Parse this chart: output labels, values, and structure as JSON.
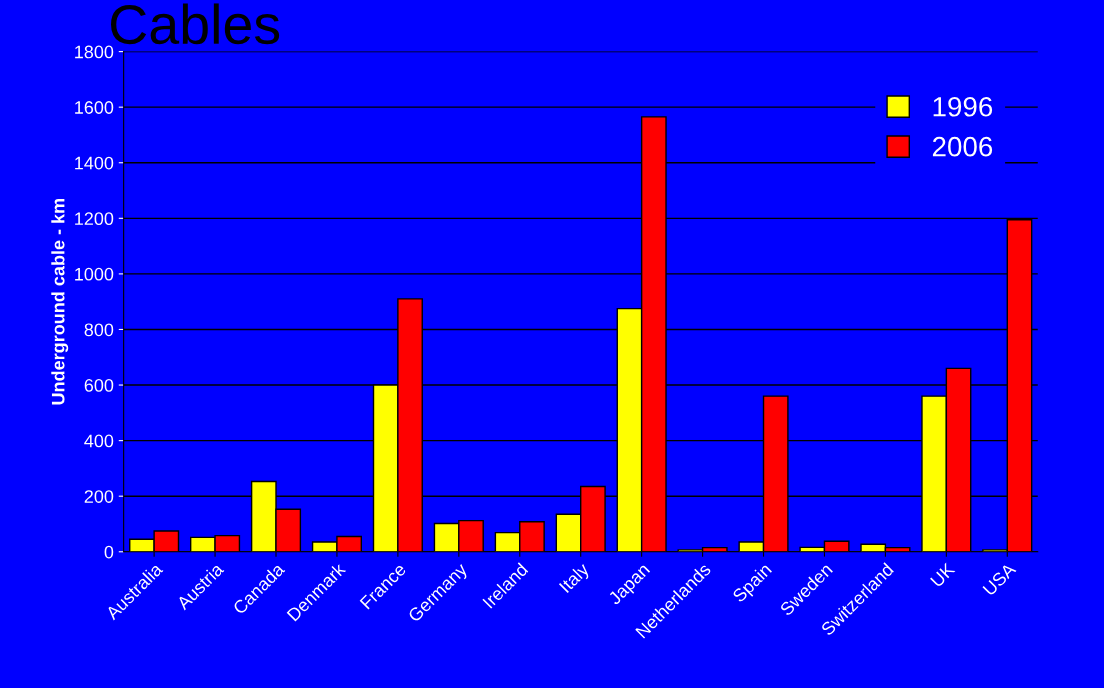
{
  "chart_data": {
    "type": "bar",
    "title": "Cables",
    "ylabel": "Underground cable - km",
    "categories": [
      "Australia",
      "Austria",
      "Canada",
      "Denmark",
      "France",
      "Germany",
      "Ireland",
      "Italy",
      "Japan",
      "Netherlands",
      "Spain",
      "Sweden",
      "Switzerland",
      "UK",
      "USA"
    ],
    "series": [
      {
        "name": "1996",
        "color": "#ffff00",
        "values": [
          45,
          52,
          253,
          35,
          600,
          102,
          69,
          135,
          875,
          7,
          35,
          16,
          27,
          560,
          7
        ]
      },
      {
        "name": "2006",
        "color": "#ff0000",
        "values": [
          75,
          58,
          153,
          55,
          910,
          112,
          108,
          235,
          1565,
          15,
          560,
          38,
          15,
          660,
          1195
        ]
      }
    ],
    "ylim": [
      0,
      1800
    ],
    "yticks": [
      0,
      200,
      400,
      600,
      800,
      1000,
      1200,
      1400,
      1600,
      1800
    ],
    "grid": "y",
    "legend": "top right"
  }
}
